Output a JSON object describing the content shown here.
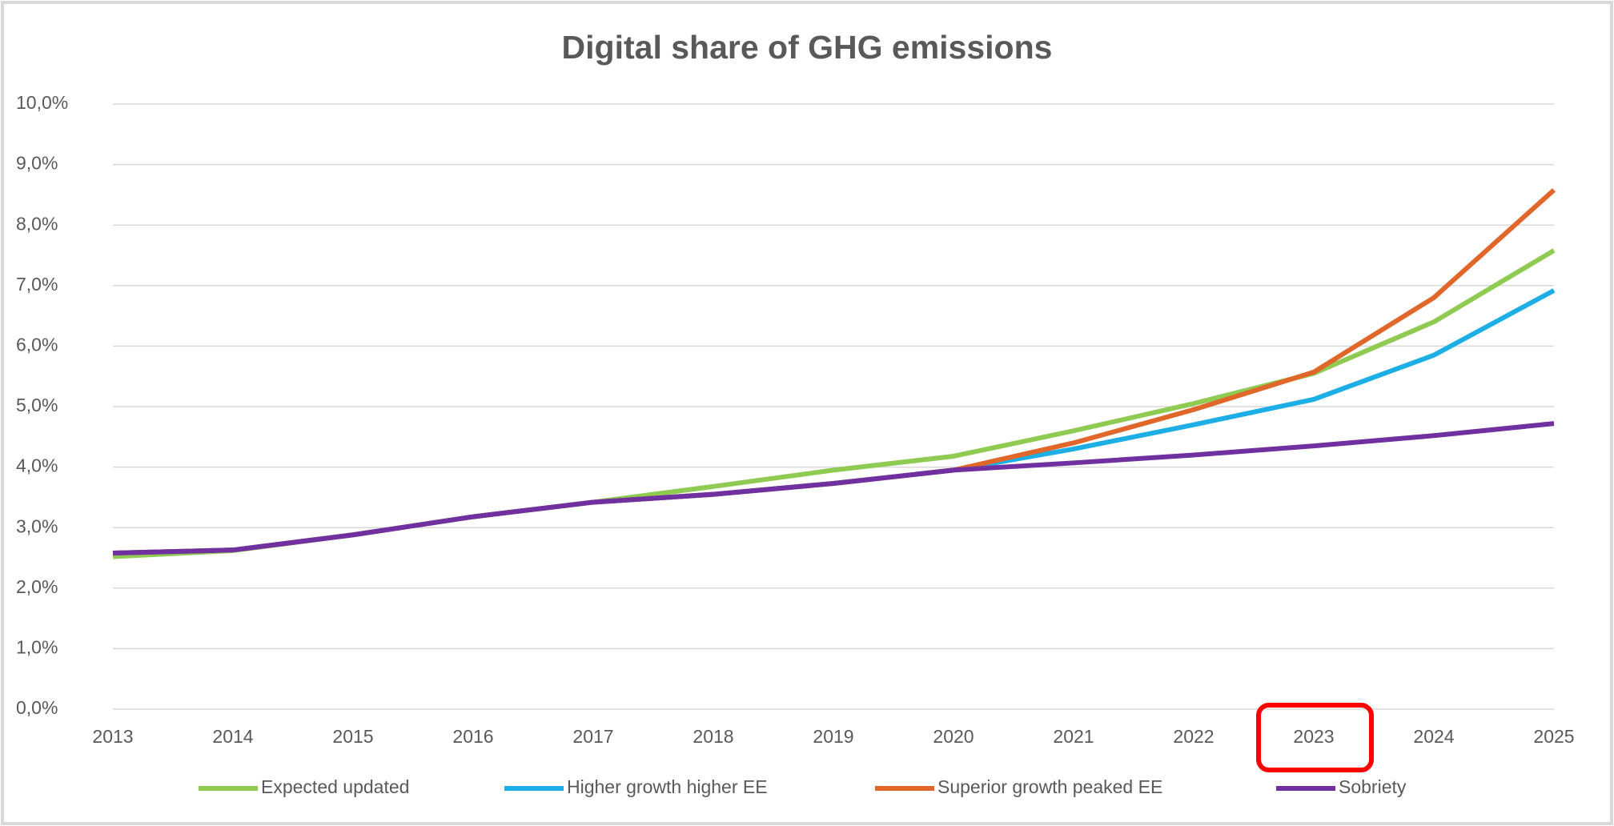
{
  "chart_data": {
    "type": "line",
    "title": "Digital share of GHG emissions",
    "x": [
      2013,
      2014,
      2015,
      2016,
      2017,
      2018,
      2019,
      2020,
      2021,
      2022,
      2023,
      2024,
      2025
    ],
    "xlim": [
      2013,
      2025
    ],
    "xticks": [
      2013,
      2014,
      2015,
      2016,
      2017,
      2018,
      2019,
      2020,
      2021,
      2022,
      2023,
      2024,
      2025
    ],
    "ylim": [
      0,
      10
    ],
    "yticks": [
      {
        "value": 0,
        "label": "0,0%"
      },
      {
        "value": 1,
        "label": "1,0%"
      },
      {
        "value": 2,
        "label": "2,0%"
      },
      {
        "value": 3,
        "label": "3,0%"
      },
      {
        "value": 4,
        "label": "4,0%"
      },
      {
        "value": 5,
        "label": "5,0%"
      },
      {
        "value": 6,
        "label": "6,0%"
      },
      {
        "value": 7,
        "label": "7,0%"
      },
      {
        "value": 8,
        "label": "8,0%"
      },
      {
        "value": 9,
        "label": "9,0%"
      },
      {
        "value": 10,
        "label": "10,0%"
      }
    ],
    "grid": true,
    "legend": "bottom",
    "series": [
      {
        "name": "Expected updated",
        "color": "#8fcb52",
        "values": [
          2.52,
          2.62,
          2.88,
          3.18,
          3.42,
          3.68,
          3.95,
          4.18,
          4.6,
          5.05,
          5.55,
          6.4,
          7.58
        ]
      },
      {
        "name": "Higher growth higher EE",
        "color": "#1eaee6",
        "values": [
          2.58,
          2.63,
          2.88,
          3.18,
          3.42,
          3.55,
          3.73,
          3.95,
          4.3,
          4.7,
          5.12,
          5.85,
          6.92
        ]
      },
      {
        "name": "Superior growth peaked EE",
        "color": "#e0662a",
        "values": [
          2.58,
          2.63,
          2.88,
          3.18,
          3.42,
          3.55,
          3.73,
          3.95,
          4.4,
          4.95,
          5.57,
          6.8,
          8.58
        ]
      },
      {
        "name": "Sobriety",
        "color": "#7030a0",
        "values": [
          2.58,
          2.63,
          2.88,
          3.18,
          3.42,
          3.55,
          3.73,
          3.95,
          4.07,
          4.2,
          4.35,
          4.52,
          4.72
        ]
      }
    ]
  }
}
